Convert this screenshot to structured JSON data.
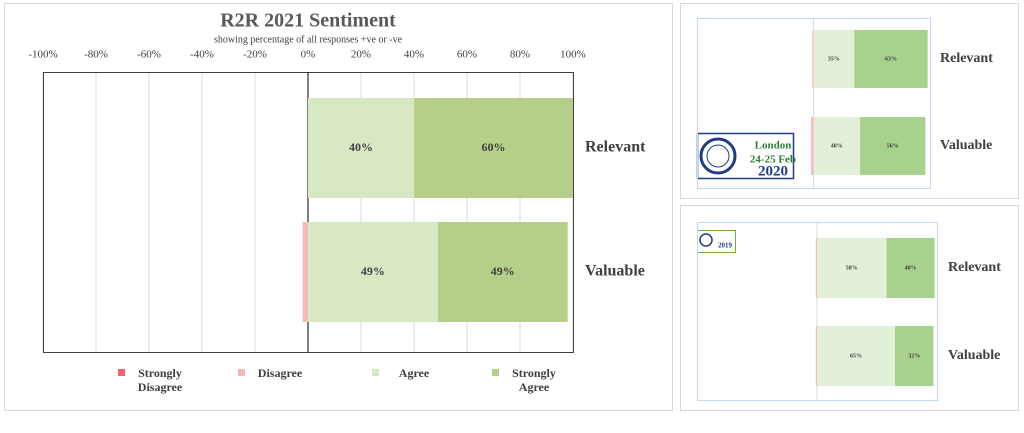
{
  "chart_data": [
    {
      "type": "bar",
      "orientation": "horizontal",
      "title": "R2R 2021 Sentiment",
      "subtitle": "showing percentage of all responses +ve or -ve",
      "categories": [
        "Relevant",
        "Valuable"
      ],
      "series": [
        {
          "name": "Strongly Disagree",
          "color": "#f0636e",
          "values": [
            0,
            0
          ]
        },
        {
          "name": "Disagree",
          "color": "#f4b6b6",
          "values": [
            0,
            -2
          ]
        },
        {
          "name": "Agree",
          "color": "#d9e8c4",
          "values": [
            40,
            49
          ],
          "value_labels": [
            "40%",
            "49%"
          ]
        },
        {
          "name": "Strongly Agree",
          "color": "#b5cf88",
          "values": [
            60,
            49
          ],
          "value_labels": [
            "60%",
            "49%"
          ]
        }
      ],
      "xlim": [
        -100,
        100
      ],
      "xticks": [
        {
          "value": -100,
          "label": "-100%"
        },
        {
          "value": -80,
          "label": "-80%"
        },
        {
          "value": -60,
          "label": "-60%"
        },
        {
          "value": -40,
          "label": "-40%"
        },
        {
          "value": -20,
          "label": "-20%"
        },
        {
          "value": 0,
          "label": "0%"
        },
        {
          "value": 20,
          "label": "20%"
        },
        {
          "value": 40,
          "label": "40%"
        },
        {
          "value": 60,
          "label": "60%"
        },
        {
          "value": 80,
          "label": "80%"
        },
        {
          "value": 100,
          "label": "100%"
        }
      ],
      "grid": true,
      "legend": "bottom"
    },
    {
      "type": "bar",
      "orientation": "horizontal",
      "categories": [
        "Relevant",
        "Valuable"
      ],
      "series": [
        {
          "color": "#f4b6b6",
          "values": [
            -1,
            -2
          ]
        },
        {
          "color": "#e2efd9",
          "values": [
            35,
            40
          ],
          "value_labels": [
            "35%",
            "40%"
          ]
        },
        {
          "color": "#a9d18e",
          "values": [
            63,
            56
          ],
          "value_labels": [
            "63%",
            "56%"
          ]
        }
      ],
      "xlim": [
        -100,
        100
      ],
      "logo_text": [
        "London",
        "24-25 Feb",
        "2020"
      ]
    },
    {
      "type": "bar",
      "orientation": "horizontal",
      "categories": [
        "Relevant",
        "Valuable"
      ],
      "series": [
        {
          "color": "#f4b6b6",
          "values": [
            -1,
            -1
          ]
        },
        {
          "color": "#e2efd9",
          "values": [
            58,
            65
          ],
          "value_labels": [
            "58%",
            "65%"
          ]
        },
        {
          "color": "#a9d18e",
          "values": [
            40,
            32
          ],
          "value_labels": [
            "40%",
            "32%"
          ]
        }
      ],
      "xlim": [
        -100,
        100
      ],
      "logo_text": [
        "2019"
      ]
    }
  ]
}
